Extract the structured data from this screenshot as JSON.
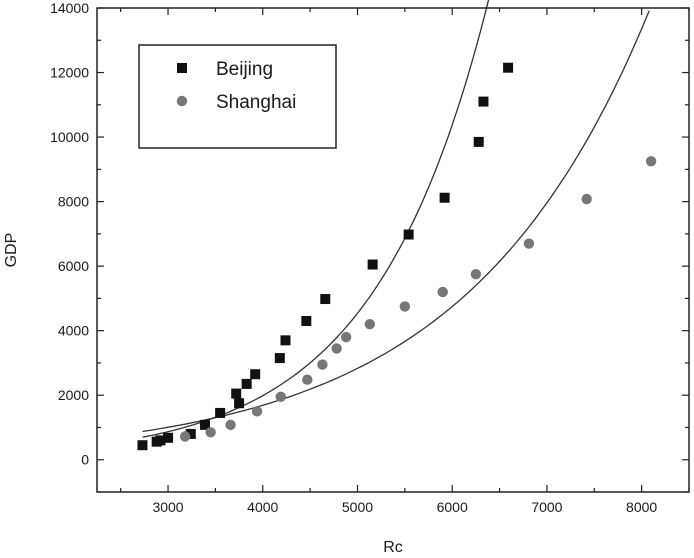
{
  "chart_data": {
    "type": "scatter",
    "title": "",
    "xlabel": "Rc",
    "ylabel": "GDP",
    "xlim": [
      2250,
      8500
    ],
    "ylim": [
      -1000,
      14000
    ],
    "x_ticks": [
      3000,
      4000,
      5000,
      6000,
      7000,
      8000
    ],
    "y_ticks": [
      0,
      2000,
      4000,
      6000,
      8000,
      10000,
      12000,
      14000
    ],
    "grid": false,
    "legend": {
      "position": "top-left"
    },
    "series": [
      {
        "name": "Beijing",
        "marker": "square",
        "color": "#111111",
        "points": [
          [
            2730,
            450
          ],
          [
            2880,
            560
          ],
          [
            2920,
            600
          ],
          [
            3000,
            680
          ],
          [
            3240,
            800
          ],
          [
            3390,
            1080
          ],
          [
            3550,
            1450
          ],
          [
            3720,
            2050
          ],
          [
            3750,
            1750
          ],
          [
            3830,
            2350
          ],
          [
            3920,
            2650
          ],
          [
            4180,
            3150
          ],
          [
            4240,
            3700
          ],
          [
            4460,
            4300
          ],
          [
            4660,
            4980
          ],
          [
            5160,
            6050
          ],
          [
            5540,
            6980
          ],
          [
            5920,
            8120
          ],
          [
            6280,
            9850
          ],
          [
            6330,
            11100
          ],
          [
            6590,
            12150
          ]
        ],
        "fit": {
          "type": "curve",
          "x_range": [
            2730,
            6590
          ]
        }
      },
      {
        "name": "Shanghai",
        "marker": "circle",
        "color": "#777777",
        "points": [
          [
            3180,
            720
          ],
          [
            3450,
            850
          ],
          [
            3660,
            1080
          ],
          [
            3940,
            1500
          ],
          [
            4190,
            1950
          ],
          [
            4470,
            2480
          ],
          [
            4630,
            2950
          ],
          [
            4780,
            3450
          ],
          [
            4880,
            3800
          ],
          [
            5130,
            4200
          ],
          [
            5500,
            4750
          ],
          [
            5900,
            5200
          ],
          [
            6250,
            5750
          ],
          [
            6810,
            6700
          ],
          [
            7420,
            8080
          ],
          [
            8100,
            9250
          ]
        ],
        "fit": {
          "type": "curve",
          "x_range": [
            2730,
            8080
          ]
        }
      }
    ]
  }
}
